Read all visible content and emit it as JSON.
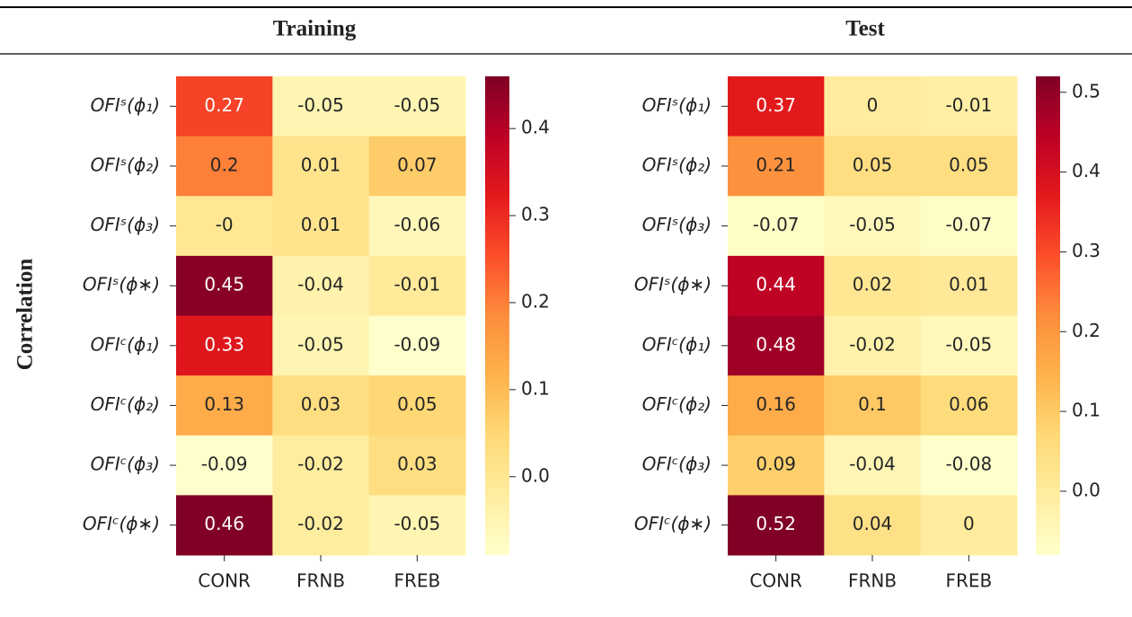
{
  "row_label": "Correlation",
  "chart_data": [
    {
      "type": "heatmap",
      "title": "Training",
      "colormap": "YlOrRd",
      "categories": [
        "CONR",
        "FRNB",
        "FREB"
      ],
      "rows": [
        "OFIˢ(ϕ₁)",
        "OFIˢ(ϕ₂)",
        "OFIˢ(ϕ₃)",
        "OFIˢ(ϕ∗)",
        "OFIᶜ(ϕ₁)",
        "OFIᶜ(ϕ₂)",
        "OFIᶜ(ϕ₃)",
        "OFIᶜ(ϕ∗)"
      ],
      "values": [
        [
          0.27,
          -0.05,
          -0.05
        ],
        [
          0.2,
          0.01,
          0.07
        ],
        [
          0,
          0.01,
          -0.06
        ],
        [
          0.45,
          -0.04,
          -0.01
        ],
        [
          0.33,
          -0.05,
          -0.09
        ],
        [
          0.13,
          0.03,
          0.05
        ],
        [
          -0.09,
          -0.02,
          0.03
        ],
        [
          0.46,
          -0.02,
          -0.05
        ]
      ],
      "value_labels": [
        [
          "0.27",
          "-0.05",
          "-0.05"
        ],
        [
          "0.2",
          "0.01",
          "0.07"
        ],
        [
          "-0",
          "0.01",
          "-0.06"
        ],
        [
          "0.45",
          "-0.04",
          "-0.01"
        ],
        [
          "0.33",
          "-0.05",
          "-0.09"
        ],
        [
          "0.13",
          "0.03",
          "0.05"
        ],
        [
          "-0.09",
          "-0.02",
          "0.03"
        ],
        [
          "0.46",
          "-0.02",
          "-0.05"
        ]
      ],
      "clim": [
        -0.09,
        0.46
      ],
      "cticks": [
        {
          "value": 0,
          "label": "0.0"
        },
        0.1,
        0.2,
        0.3,
        0.4
      ]
    },
    {
      "type": "heatmap",
      "title": "Test",
      "colormap": "YlOrRd",
      "categories": [
        "CONR",
        "FRNB",
        "FREB"
      ],
      "rows": [
        "OFIˢ(ϕ₁)",
        "OFIˢ(ϕ₂)",
        "OFIˢ(ϕ₃)",
        "OFIˢ(ϕ∗)",
        "OFIᶜ(ϕ₁)",
        "OFIᶜ(ϕ₂)",
        "OFIᶜ(ϕ₃)",
        "OFIᶜ(ϕ∗)"
      ],
      "values": [
        [
          0.37,
          0,
          -0.01
        ],
        [
          0.21,
          0.05,
          0.05
        ],
        [
          -0.07,
          -0.05,
          -0.07
        ],
        [
          0.44,
          0.02,
          0.01
        ],
        [
          0.48,
          -0.02,
          -0.05
        ],
        [
          0.16,
          0.1,
          0.06
        ],
        [
          0.09,
          -0.04,
          -0.08
        ],
        [
          0.52,
          0.04,
          0
        ]
      ],
      "value_labels": [
        [
          "0.37",
          "0",
          "-0.01"
        ],
        [
          "0.21",
          "0.05",
          "0.05"
        ],
        [
          "-0.07",
          "-0.05",
          "-0.07"
        ],
        [
          "0.44",
          "0.02",
          "0.01"
        ],
        [
          "0.48",
          "-0.02",
          "-0.05"
        ],
        [
          "0.16",
          "0.1",
          "0.06"
        ],
        [
          "0.09",
          "-0.04",
          "-0.08"
        ],
        [
          "0.52",
          "0.04",
          "0"
        ]
      ],
      "clim": [
        -0.08,
        0.52
      ],
      "cticks": [
        {
          "value": 0,
          "label": "0.0"
        },
        0.1,
        0.2,
        0.3,
        0.4,
        0.5
      ]
    }
  ]
}
